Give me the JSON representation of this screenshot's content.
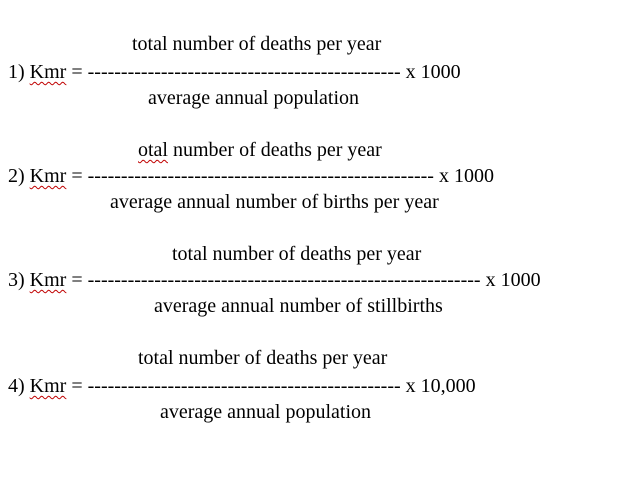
{
  "formulas": [
    {
      "index": "1)",
      "term": "Kmr",
      "equals": "=",
      "numerator_prefix": "",
      "numerator_text": "total number of deaths per year",
      "dashes": "-----------------------------------------------",
      "multiplier": "x 1000",
      "denominator": "average annual population"
    },
    {
      "index": "2)",
      "term": "Kmr",
      "equals": "=",
      "numerator_prefix": "otal",
      "numerator_text": " number of deaths per year",
      "dashes": "----------------------------------------------------",
      "multiplier": "x 1000",
      "denominator": "average annual number of births per year"
    },
    {
      "index": "3)",
      "term": "Kmr",
      "equals": "=",
      "numerator_prefix": "",
      "numerator_text": "total number of deaths per year",
      "dashes": "-----------------------------------------------------------",
      "multiplier": "x 1000",
      "denominator": "average annual number of stillbirths"
    },
    {
      "index": "4)",
      "term": "Kmr",
      "equals": "=",
      "numerator_prefix": "",
      "numerator_text": "total number of deaths per year",
      "dashes": "-----------------------------------------------",
      "multiplier": "x 10,000",
      "denominator": "average annual population"
    }
  ]
}
